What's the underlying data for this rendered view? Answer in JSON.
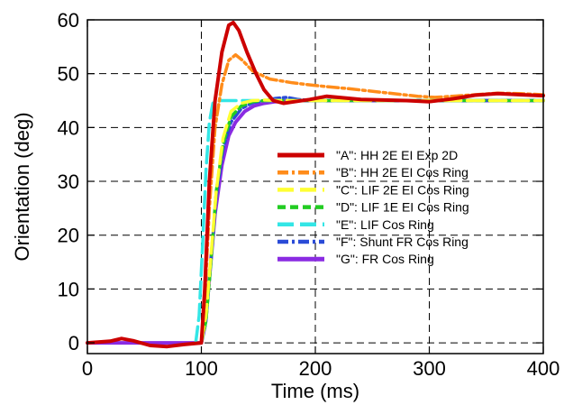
{
  "chart_data": {
    "type": "line",
    "xlabel": "Time (ms)",
    "ylabel": "Orientation (deg)",
    "xlim": [
      0,
      400
    ],
    "ylim": [
      -2,
      60
    ],
    "xticks": [
      0,
      100,
      200,
      300,
      400
    ],
    "yticks": [
      0,
      10,
      20,
      30,
      40,
      50,
      60
    ],
    "grid": true,
    "legend_position": "center-right",
    "series": [
      {
        "name": "\"A\": HH 2E EI Exp 2D",
        "color": "#cc0000",
        "style": "solid",
        "x": [
          0,
          20,
          30,
          40,
          55,
          70,
          85,
          100,
          103,
          107,
          112,
          118,
          124,
          128,
          133,
          140,
          148,
          155,
          163,
          172,
          182,
          195,
          210,
          225,
          240,
          260,
          280,
          300,
          320,
          340,
          360,
          380,
          400
        ],
        "y": [
          0,
          0.3,
          0.8,
          0.4,
          -0.5,
          -0.7,
          -0.3,
          0,
          10,
          30,
          45,
          54,
          59,
          59.5,
          58,
          54,
          50,
          47,
          45,
          44.5,
          44.8,
          45.2,
          45.8,
          45.5,
          45.2,
          45.1,
          45,
          44.8,
          45.3,
          46,
          46.3,
          46.1,
          45.9
        ]
      },
      {
        "name": "\"B\": HH 2E EI Cos Ring",
        "color": "#ff8c1a",
        "style": "dashdot",
        "x": [
          100,
          103,
          107,
          112,
          118,
          124,
          130,
          136,
          145,
          160,
          180,
          200,
          230,
          260,
          290,
          305,
          320,
          340,
          360,
          380,
          400
        ],
        "y": [
          0,
          8,
          25,
          40,
          48,
          52.5,
          53.5,
          52.5,
          50.5,
          49,
          48.3,
          47.8,
          47.2,
          46.5,
          45.8,
          45.6,
          45.8,
          46.1,
          46.4,
          46.3,
          46.1
        ]
      },
      {
        "name": "\"C\": LIF 2E EI Cos Ring",
        "color": "#ffff33",
        "style": "longdash",
        "x": [
          100,
          104,
          108,
          113,
          119,
          126,
          135,
          145,
          155,
          170,
          200,
          250,
          300,
          350,
          400
        ],
        "y": [
          0,
          5,
          15,
          28,
          38,
          43,
          44.5,
          45,
          45.1,
          45,
          45,
          45,
          45,
          45,
          45
        ]
      },
      {
        "name": "\"D\": LIF 1E EI Cos Ring",
        "color": "#22cc22",
        "style": "dashed",
        "x": [
          100,
          104,
          108,
          113,
          119,
          126,
          135,
          145,
          155,
          170,
          200,
          250,
          300,
          350,
          400
        ],
        "y": [
          0,
          4,
          14,
          28,
          37,
          42,
          44,
          44.8,
          45,
          45,
          45,
          45,
          45,
          45,
          45
        ]
      },
      {
        "name": "\"E\": LIF Cos Ring",
        "color": "#33e6e6",
        "style": "longdash",
        "x": [
          95,
          98,
          101,
          104,
          107,
          110,
          115,
          125,
          140,
          160,
          200,
          250,
          300,
          350,
          400
        ],
        "y": [
          0,
          5,
          18,
          32,
          41,
          44.5,
          45,
          45,
          45,
          45,
          45,
          45,
          45,
          45,
          45
        ]
      },
      {
        "name": "\"F\": Shunt FR Cos Ring",
        "color": "#2a4bd7",
        "style": "dashdot",
        "x": [
          100,
          104,
          108,
          113,
          119,
          126,
          135,
          145,
          155,
          165,
          175,
          185,
          200,
          250,
          300,
          350,
          400
        ],
        "y": [
          0,
          4,
          14,
          27,
          36,
          41,
          43.5,
          44.6,
          45,
          45.4,
          45.6,
          45.2,
          45,
          45,
          45,
          45,
          45
        ]
      },
      {
        "name": "\"G\": FR Cos Ring",
        "color": "#8a2be2",
        "style": "solid",
        "x": [
          0,
          50,
          97,
          100,
          103,
          107,
          112,
          118,
          124,
          130,
          138,
          146,
          155,
          165,
          180,
          200,
          250,
          300,
          350,
          400
        ],
        "y": [
          0,
          0,
          0,
          0,
          3,
          12,
          24,
          33,
          38.5,
          41,
          43,
          44,
          44.5,
          44.8,
          45,
          45,
          45,
          45,
          45,
          45
        ]
      }
    ]
  }
}
